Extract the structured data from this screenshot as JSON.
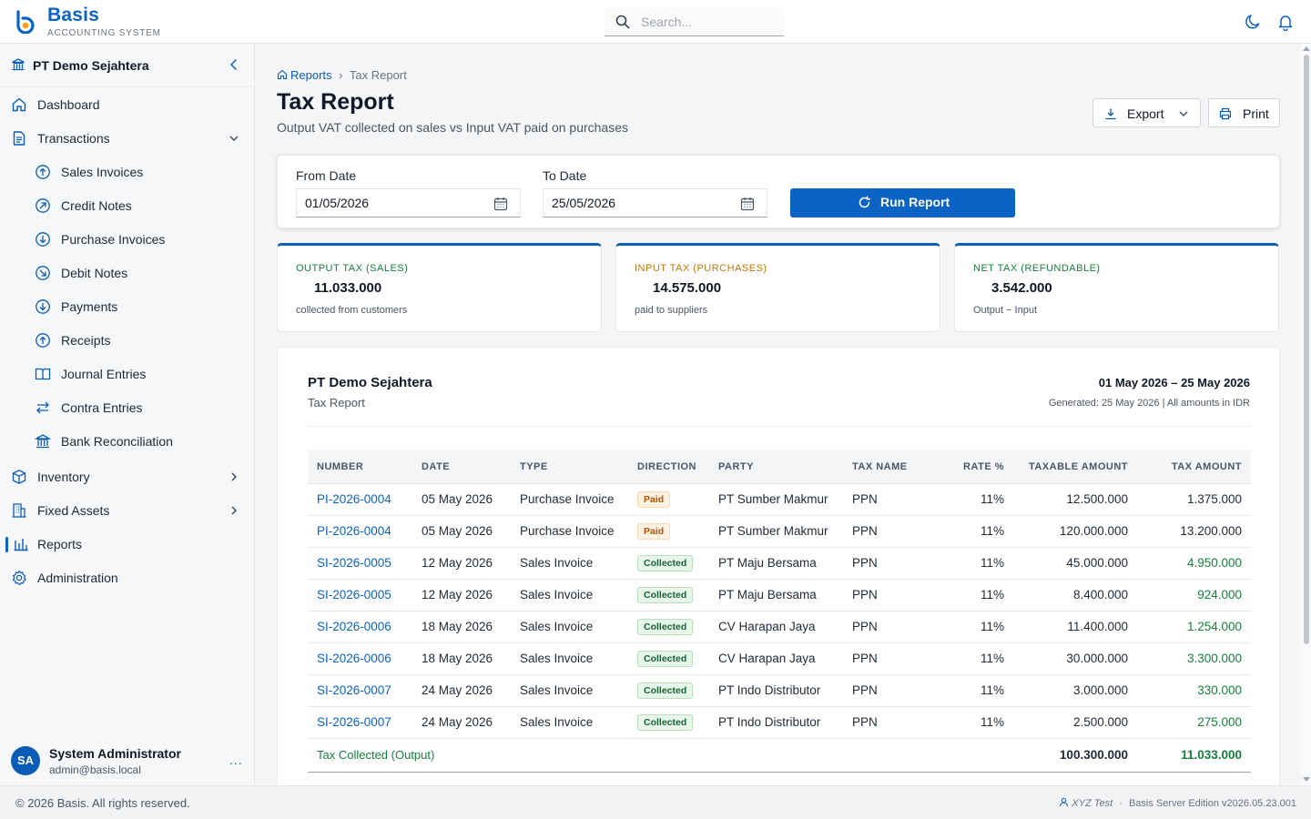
{
  "app": {
    "name": "Basis",
    "subtitle": "ACCOUNTING SYSTEM",
    "accent": "#0b63c4"
  },
  "search": {
    "placeholder": "Search..."
  },
  "sidebar": {
    "company": "PT Demo Sejahtera",
    "items": [
      {
        "label": "Dashboard",
        "icon": "home-icon"
      },
      {
        "label": "Transactions",
        "icon": "document-icon",
        "expanded": true
      },
      {
        "label": "Sales Invoices",
        "icon": "arrow-up-circle-icon"
      },
      {
        "label": "Credit Notes",
        "icon": "arrow-up-right-circle-icon"
      },
      {
        "label": "Purchase Invoices",
        "icon": "arrow-down-circle-icon"
      },
      {
        "label": "Debit Notes",
        "icon": "arrow-down-right-circle-icon"
      },
      {
        "label": "Payments",
        "icon": "arrow-down-circle-icon"
      },
      {
        "label": "Receipts",
        "icon": "arrow-up-circle-icon"
      },
      {
        "label": "Journal Entries",
        "icon": "book-icon"
      },
      {
        "label": "Contra Entries",
        "icon": "swap-icon"
      },
      {
        "label": "Bank Reconciliation",
        "icon": "bank-icon"
      },
      {
        "label": "Inventory",
        "icon": "box-icon"
      },
      {
        "label": "Fixed Assets",
        "icon": "building-icon"
      },
      {
        "label": "Reports",
        "icon": "bar-chart-icon",
        "active": true
      },
      {
        "label": "Administration",
        "icon": "gear-icon"
      }
    ]
  },
  "user": {
    "initials": "SA",
    "name": "System Administrator",
    "email": "admin@basis.local",
    "more": "..."
  },
  "footer": {
    "copyright": "© 2026 Basis. All rights reserved.",
    "user": "XYZ Test",
    "separator": "·",
    "edition": "Basis Server Edition v2026.05.23.001"
  },
  "breadcrumb": {
    "root": "Reports",
    "sep": "›",
    "current": "Tax Report"
  },
  "page": {
    "title": "Tax Report",
    "subtitle": "Output VAT collected on sales vs Input VAT paid on purchases"
  },
  "actions": {
    "export": "Export",
    "print": "Print"
  },
  "filters": {
    "from_label": "From Date",
    "from_value": "01/05/2026",
    "to_label": "To Date",
    "to_value": "25/05/2026",
    "run": "Run Report"
  },
  "stats": [
    {
      "key": "OUTPUT TAX (SALES)",
      "value": "11.033.000",
      "desc": "collected from customers",
      "color": "#15803d"
    },
    {
      "key": "INPUT TAX (PURCHASES)",
      "value": "14.575.000",
      "desc": "paid to suppliers",
      "color": "#c2780a"
    },
    {
      "key": "NET TAX (REFUNDABLE)",
      "value": "3.542.000",
      "desc": "Output − Input",
      "color": "#15803d"
    }
  ],
  "report": {
    "company": "PT Demo Sejahtera",
    "name": "Tax Report",
    "range": "01 May 2026 – 25 May 2026",
    "generated": "Generated: 25 May 2026 | All amounts in IDR",
    "columns": [
      "NUMBER",
      "DATE",
      "TYPE",
      "DIRECTION",
      "PARTY",
      "TAX NAME",
      "RATE %",
      "TAXABLE AMOUNT",
      "TAX AMOUNT"
    ],
    "rows": [
      {
        "number": "PI-2026-0004",
        "date": "05 May 2026",
        "type": "Purchase Invoice",
        "direction": "Paid",
        "party": "PT Sumber Makmur",
        "tax": "PPN",
        "rate": "11%",
        "taxable": "12.500.000",
        "amount": "1.375.000"
      },
      {
        "number": "PI-2026-0004",
        "date": "05 May 2026",
        "type": "Purchase Invoice",
        "direction": "Paid",
        "party": "PT Sumber Makmur",
        "tax": "PPN",
        "rate": "11%",
        "taxable": "120.000.000",
        "amount": "13.200.000"
      },
      {
        "number": "SI-2026-0005",
        "date": "12 May 2026",
        "type": "Sales Invoice",
        "direction": "Collected",
        "party": "PT Maju Bersama",
        "tax": "PPN",
        "rate": "11%",
        "taxable": "45.000.000",
        "amount": "4.950.000"
      },
      {
        "number": "SI-2026-0005",
        "date": "12 May 2026",
        "type": "Sales Invoice",
        "direction": "Collected",
        "party": "PT Maju Bersama",
        "tax": "PPN",
        "rate": "11%",
        "taxable": "8.400.000",
        "amount": "924.000"
      },
      {
        "number": "SI-2026-0006",
        "date": "18 May 2026",
        "type": "Sales Invoice",
        "direction": "Collected",
        "party": "CV Harapan Jaya",
        "tax": "PPN",
        "rate": "11%",
        "taxable": "11.400.000",
        "amount": "1.254.000"
      },
      {
        "number": "SI-2026-0006",
        "date": "18 May 2026",
        "type": "Sales Invoice",
        "direction": "Collected",
        "party": "CV Harapan Jaya",
        "tax": "PPN",
        "rate": "11%",
        "taxable": "30.000.000",
        "amount": "3.300.000"
      },
      {
        "number": "SI-2026-0007",
        "date": "24 May 2026",
        "type": "Sales Invoice",
        "direction": "Collected",
        "party": "PT Indo Distributor",
        "tax": "PPN",
        "rate": "11%",
        "taxable": "3.000.000",
        "amount": "330.000"
      },
      {
        "number": "SI-2026-0007",
        "date": "24 May 2026",
        "type": "Sales Invoice",
        "direction": "Collected",
        "party": "PT Indo Distributor",
        "tax": "PPN",
        "rate": "11%",
        "taxable": "2.500.000",
        "amount": "275.000"
      }
    ],
    "total_output": {
      "label": "Tax Collected (Output)",
      "taxable": "100.300.000",
      "amount": "11.033.000"
    }
  }
}
